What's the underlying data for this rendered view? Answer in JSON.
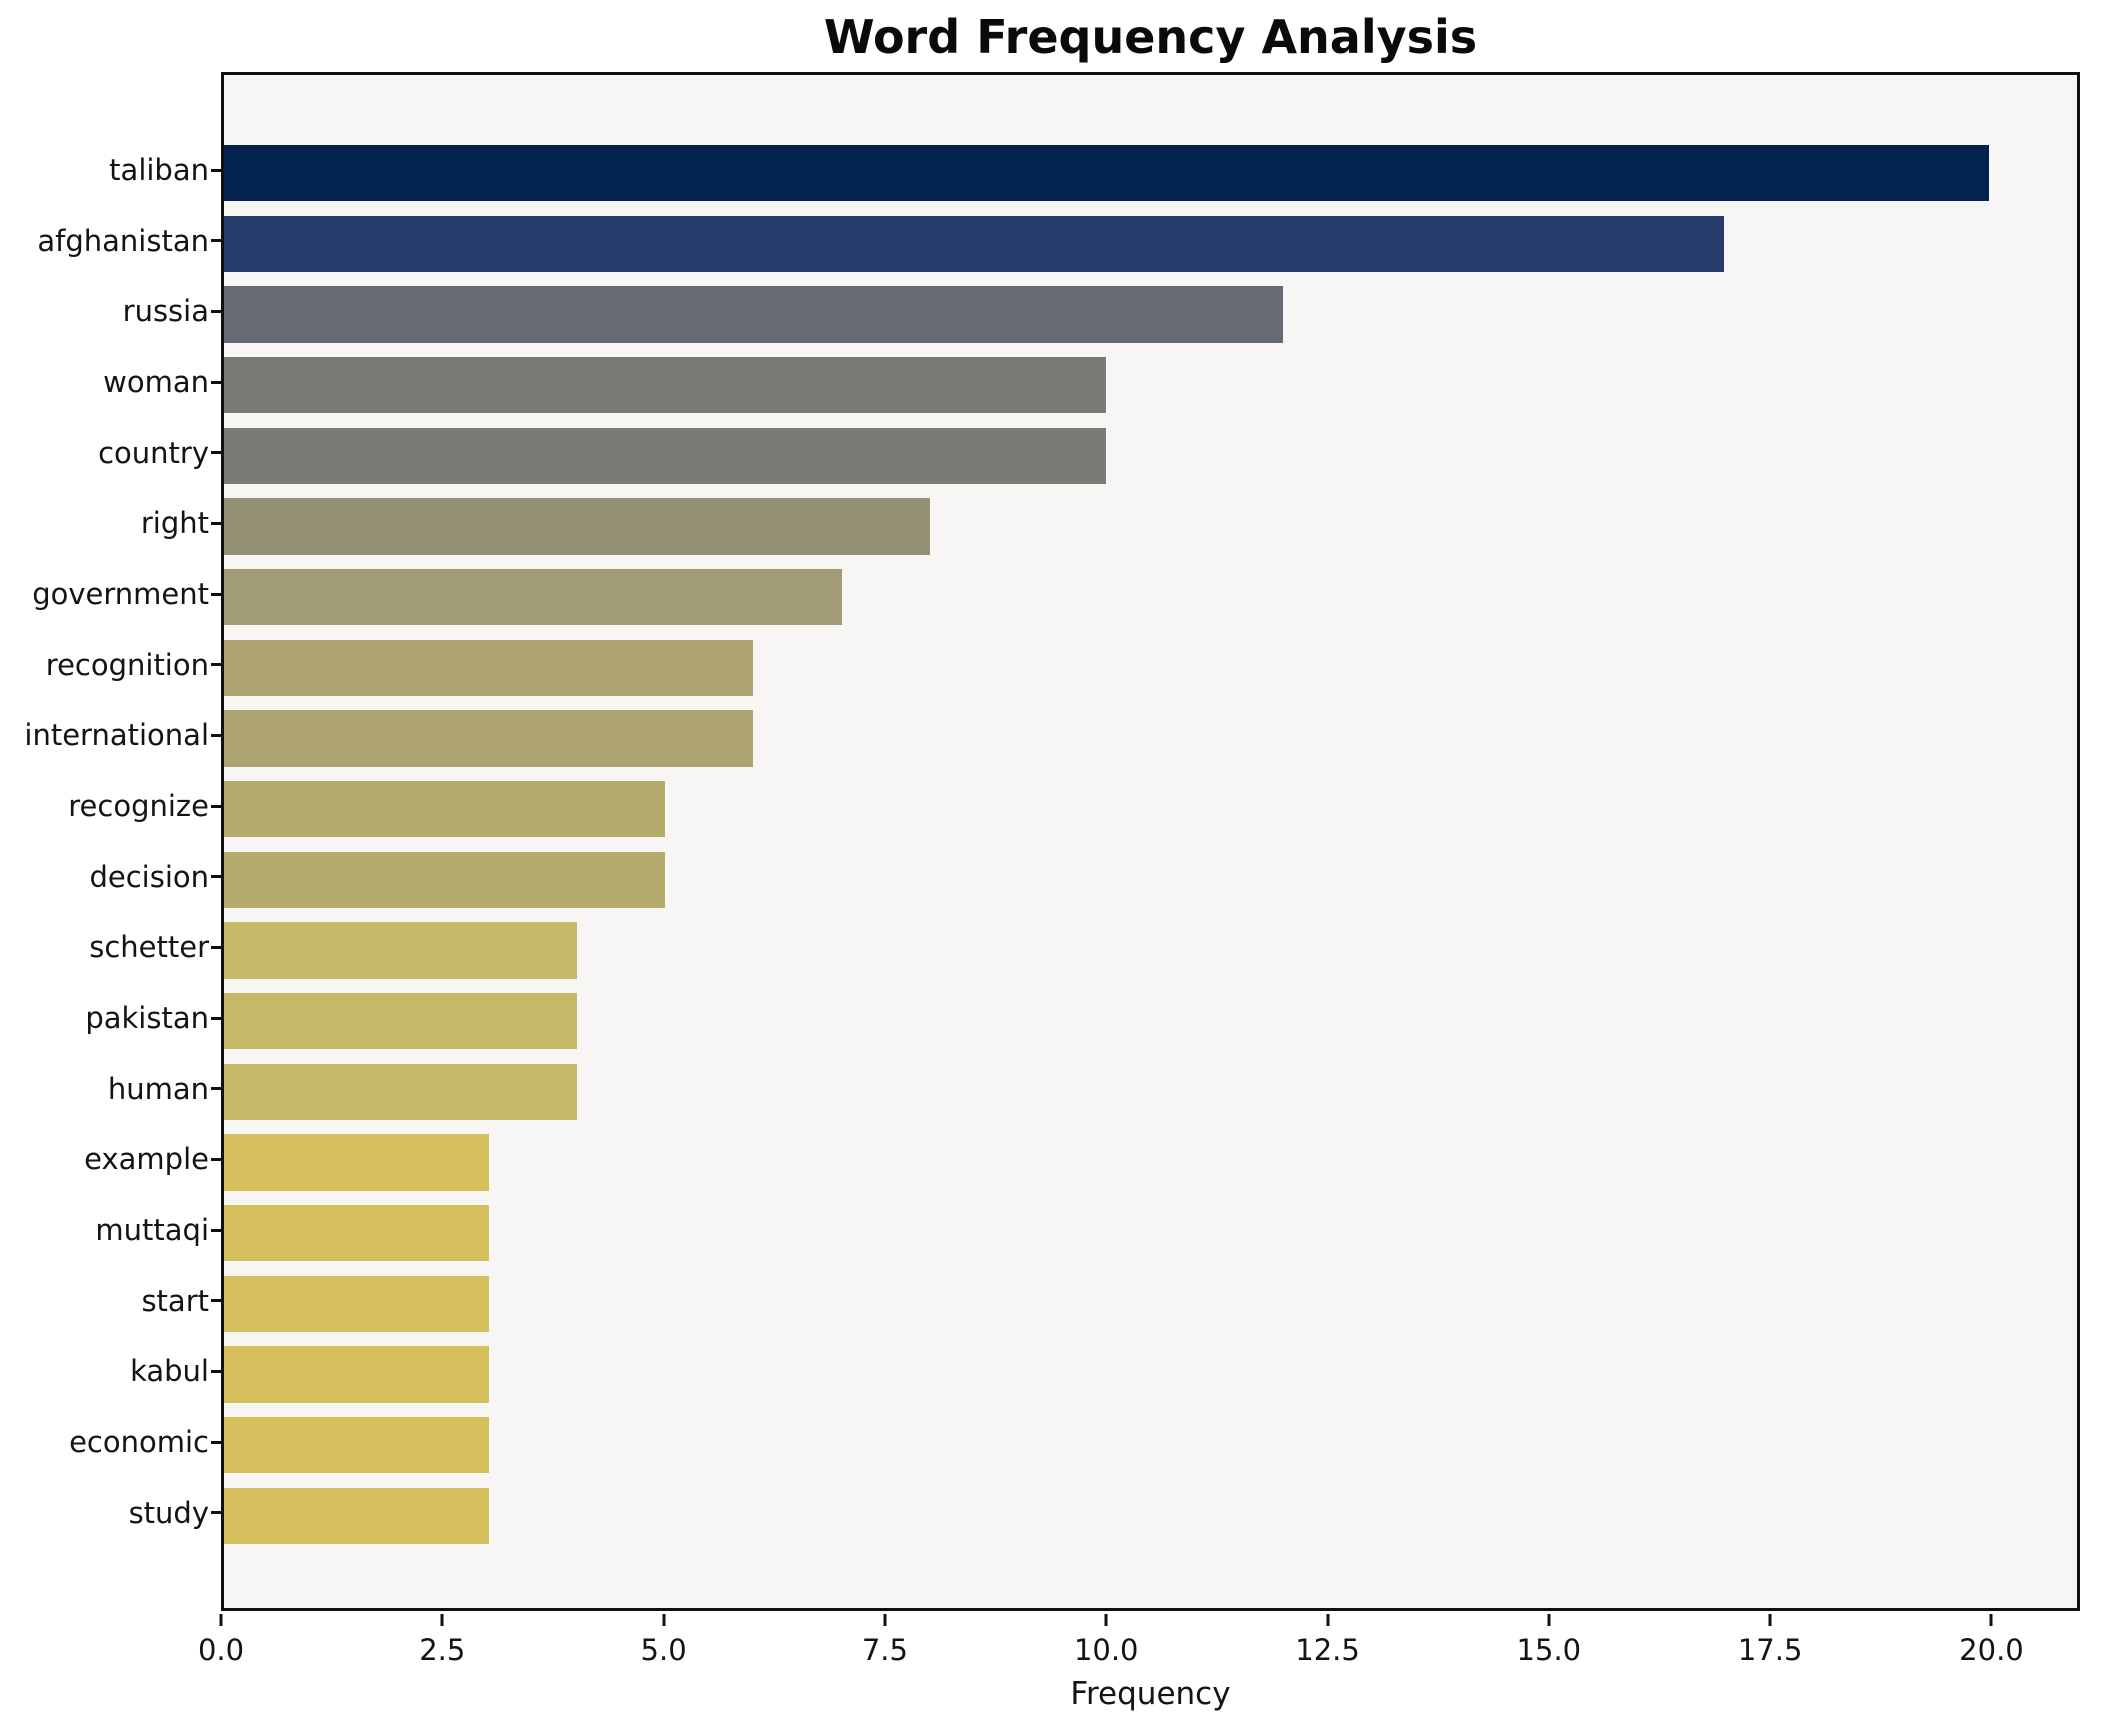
{
  "chart_data": {
    "type": "bar",
    "orientation": "horizontal",
    "title": "Word Frequency Analysis",
    "xlabel": "Frequency",
    "ylabel": "",
    "categories": [
      "taliban",
      "afghanistan",
      "russia",
      "woman",
      "country",
      "right",
      "government",
      "recognition",
      "international",
      "recognize",
      "decision",
      "schetter",
      "pakistan",
      "human",
      "example",
      "muttaqi",
      "start",
      "kabul",
      "economic",
      "study"
    ],
    "values": [
      20,
      17,
      12,
      10,
      10,
      8,
      7,
      6,
      6,
      5,
      5,
      4,
      4,
      4,
      3,
      3,
      3,
      3,
      3,
      3
    ],
    "bar_colors": [
      "#02234f",
      "#273c6b",
      "#666a74",
      "#7b7a76",
      "#7b7a76",
      "#959176",
      "#a29c74",
      "#ada472",
      "#ada472",
      "#b5ab6c",
      "#b5ab6c",
      "#c6b967",
      "#c6b967",
      "#c6b967",
      "#d6c05e",
      "#d6c05e",
      "#d6c05e",
      "#d6c05e",
      "#d6c05e",
      "#d6c05e"
    ],
    "xlim": [
      0,
      21
    ],
    "xticks": {
      "values": [
        0,
        2.5,
        5,
        7.5,
        10,
        12.5,
        15,
        17.5,
        20
      ],
      "labels": [
        "0.0",
        "2.5",
        "5.0",
        "7.5",
        "10.0",
        "12.5",
        "15.0",
        "17.5",
        "20.0"
      ]
    },
    "grid": false,
    "legend": null,
    "colors": {
      "plot_background": "#f7f6f5",
      "figure_background": "#ffffff",
      "spine": "#101010",
      "text": "#141414"
    }
  }
}
